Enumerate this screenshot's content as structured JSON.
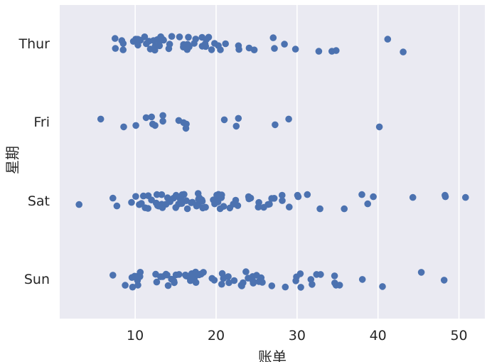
{
  "colors": {
    "figure_bg": "#ffffff",
    "plot_bg": "#eaeaf2",
    "grid": "#ffffff",
    "point": "#4c72b0",
    "text": "#262626"
  },
  "chart_data": {
    "type": "scatter",
    "variant": "strip-plot",
    "title": "",
    "xlabel": "账单",
    "ylabel": "星期",
    "categories": [
      "Thur",
      "Fri",
      "Sat",
      "Sun"
    ],
    "x_ticks": [
      10,
      20,
      30,
      40,
      50
    ],
    "xlim": [
      0.68,
      53.2
    ],
    "grid": "vertical-only",
    "legend": null,
    "point_radius": 4.8,
    "jitter_amplitude": 11,
    "series": [
      {
        "name": "Thur",
        "points": [
          [
            27.2,
            6
          ],
          [
            22.76,
            null
          ],
          [
            17.29,
            null
          ],
          [
            19.44,
            null
          ],
          [
            16.66,
            null
          ],
          [
            10.07,
            null
          ],
          [
            32.68,
            10
          ],
          [
            15.98,
            null
          ],
          [
            34.83,
            9
          ],
          [
            13.03,
            null
          ],
          [
            18.28,
            null
          ],
          [
            24.71,
            null
          ],
          [
            21.16,
            null
          ],
          [
            10.65,
            null
          ],
          [
            12.43,
            null
          ],
          [
            24.08,
            null
          ],
          [
            11.69,
            null
          ],
          [
            13.42,
            null
          ],
          [
            14.26,
            null
          ],
          [
            15.95,
            null
          ],
          [
            12.48,
            null
          ],
          [
            29.8,
            7
          ],
          [
            8.52,
            -1
          ],
          [
            14.52,
            null
          ],
          [
            11.38,
            null
          ],
          [
            22.82,
            null
          ],
          [
            19.08,
            null
          ],
          [
            20.27,
            null
          ],
          [
            11.17,
            null
          ],
          [
            12.26,
            null
          ],
          [
            18.26,
            null
          ],
          [
            8.51,
            8
          ],
          [
            10.33,
            null
          ],
          [
            14.15,
            null
          ],
          [
            16.0,
            null
          ],
          [
            13.16,
            null
          ],
          [
            17.47,
            null
          ],
          [
            34.3,
            10
          ],
          [
            41.19,
            -7
          ],
          [
            27.05,
            -9
          ],
          [
            16.43,
            null
          ],
          [
            8.35,
            -5
          ],
          [
            18.64,
            null
          ],
          [
            11.87,
            null
          ],
          [
            9.78,
            null
          ],
          [
            7.51,
            -8
          ],
          [
            19.81,
            null
          ],
          [
            28.44,
            0
          ],
          [
            15.48,
            null
          ],
          [
            16.58,
            null
          ],
          [
            7.56,
            6
          ],
          [
            10.34,
            null
          ],
          [
            43.11,
            11
          ],
          [
            13.0,
            null
          ],
          [
            13.51,
            null
          ],
          [
            18.71,
            null
          ],
          [
            12.74,
            null
          ],
          [
            13.0,
            null
          ],
          [
            16.4,
            null
          ],
          [
            20.53,
            null
          ],
          [
            16.47,
            null
          ],
          [
            18.78,
            null
          ]
        ]
      },
      {
        "name": "Fri",
        "points": [
          [
            28.97,
            -5
          ],
          [
            22.49,
            5
          ],
          [
            5.75,
            -5
          ],
          [
            16.32,
            2
          ],
          [
            22.75,
            -6
          ],
          [
            40.17,
            6
          ],
          [
            27.28,
            3
          ],
          [
            12.03,
            -8
          ],
          [
            21.01,
            -4
          ],
          [
            12.46,
            4
          ],
          [
            11.35,
            -7
          ],
          [
            15.38,
            -3
          ],
          [
            12.16,
            2
          ],
          [
            13.42,
            -10
          ],
          [
            8.58,
            6
          ],
          [
            15.98,
            0
          ],
          [
            13.42,
            -2
          ],
          [
            16.27,
            8
          ],
          [
            10.09,
            4
          ]
        ]
      },
      {
        "name": "Sat",
        "points": [
          [
            20.65,
            null
          ],
          [
            17.92,
            null
          ],
          [
            20.29,
            null
          ],
          [
            15.77,
            null
          ],
          [
            39.42,
            -6
          ],
          [
            19.82,
            null
          ],
          [
            17.81,
            null
          ],
          [
            13.37,
            null
          ],
          [
            12.69,
            null
          ],
          [
            21.7,
            null
          ],
          [
            19.65,
            null
          ],
          [
            9.55,
            2
          ],
          [
            18.35,
            null
          ],
          [
            15.06,
            null
          ],
          [
            20.69,
            null
          ],
          [
            17.78,
            null
          ],
          [
            24.06,
            null
          ],
          [
            16.31,
            null
          ],
          [
            16.93,
            null
          ],
          [
            18.69,
            null
          ],
          [
            31.27,
            -9
          ],
          [
            16.04,
            null
          ],
          [
            38.01,
            -9
          ],
          [
            26.41,
            null
          ],
          [
            11.24,
            null
          ],
          [
            48.27,
            -8
          ],
          [
            20.29,
            null
          ],
          [
            13.81,
            null
          ],
          [
            11.02,
            null
          ],
          [
            18.29,
            null
          ],
          [
            17.59,
            null
          ],
          [
            20.08,
            null
          ],
          [
            16.45,
            null
          ],
          [
            3.07,
            5
          ],
          [
            20.23,
            null
          ],
          [
            15.01,
            null
          ],
          [
            12.02,
            null
          ],
          [
            17.07,
            null
          ],
          [
            26.86,
            null
          ],
          [
            25.28,
            null
          ],
          [
            14.73,
            null
          ],
          [
            10.51,
            null
          ],
          [
            17.92,
            null
          ],
          [
            44.3,
            -5
          ],
          [
            22.42,
            null
          ],
          [
            20.92,
            null
          ],
          [
            15.36,
            null
          ],
          [
            20.49,
            null
          ],
          [
            25.21,
            null
          ],
          [
            18.24,
            null
          ],
          [
            14.31,
            null
          ],
          [
            14.0,
            null
          ],
          [
            7.25,
            -4
          ],
          [
            50.81,
            -5
          ],
          [
            15.81,
            null
          ],
          [
            26.59,
            null
          ],
          [
            38.73,
            4
          ],
          [
            24.27,
            null
          ],
          [
            12.76,
            null
          ],
          [
            30.06,
            -8
          ],
          [
            25.89,
            null
          ],
          [
            48.33,
            -6
          ],
          [
            13.27,
            null
          ],
          [
            28.17,
            null
          ],
          [
            12.9,
            null
          ],
          [
            28.15,
            null
          ],
          [
            11.59,
            null
          ],
          [
            7.74,
            7
          ],
          [
            30.14,
            -6
          ],
          [
            20.45,
            null
          ],
          [
            13.28,
            null
          ],
          [
            22.12,
            null
          ],
          [
            24.01,
            null
          ],
          [
            15.69,
            null
          ],
          [
            11.61,
            null
          ],
          [
            10.77,
            null
          ],
          [
            15.53,
            null
          ],
          [
            10.07,
            null
          ],
          [
            12.6,
            null
          ],
          [
            32.83,
            11
          ],
          [
            35.83,
            11
          ],
          [
            29.03,
            null
          ],
          [
            27.18,
            null
          ],
          [
            22.67,
            null
          ],
          [
            17.82,
            null
          ]
        ]
      },
      {
        "name": "Sun",
        "points": [
          [
            16.99,
            null
          ],
          [
            10.34,
            null
          ],
          [
            21.01,
            null
          ],
          [
            23.68,
            null
          ],
          [
            24.59,
            null
          ],
          [
            25.29,
            null
          ],
          [
            8.77,
            null
          ],
          [
            26.88,
            null
          ],
          [
            15.04,
            null
          ],
          [
            14.78,
            null
          ],
          [
            10.27,
            null
          ],
          [
            35.26,
            8
          ],
          [
            15.42,
            null
          ],
          [
            18.43,
            null
          ],
          [
            14.83,
            null
          ],
          [
            21.58,
            null
          ],
          [
            10.33,
            null
          ],
          [
            16.29,
            null
          ],
          [
            16.97,
            null
          ],
          [
            17.46,
            null
          ],
          [
            13.94,
            null
          ],
          [
            9.68,
            null
          ],
          [
            30.4,
            -8
          ],
          [
            22.23,
            null
          ],
          [
            32.4,
            -7
          ],
          [
            28.55,
            null
          ],
          [
            18.04,
            null
          ],
          [
            12.54,
            null
          ],
          [
            10.29,
            null
          ],
          [
            34.81,
            8
          ],
          [
            9.94,
            null
          ],
          [
            25.56,
            null
          ],
          [
            19.49,
            null
          ],
          [
            38.07,
            0
          ],
          [
            23.95,
            null
          ],
          [
            25.71,
            null
          ],
          [
            17.31,
            null
          ],
          [
            29.93,
            null
          ],
          [
            14.07,
            null
          ],
          [
            13.13,
            null
          ],
          [
            17.26,
            null
          ],
          [
            24.55,
            null
          ],
          [
            19.77,
            null
          ],
          [
            29.85,
            null
          ],
          [
            48.17,
            1
          ],
          [
            25.0,
            null
          ],
          [
            13.39,
            null
          ],
          [
            16.49,
            null
          ],
          [
            21.5,
            null
          ],
          [
            12.66,
            null
          ],
          [
            16.21,
            null
          ],
          [
            13.81,
            null
          ],
          [
            17.51,
            null
          ],
          [
            24.52,
            null
          ],
          [
            20.76,
            null
          ],
          [
            31.71,
            0
          ],
          [
            10.59,
            null
          ],
          [
            10.63,
            null
          ],
          [
            7.25,
            -6
          ],
          [
            31.85,
            7
          ],
          [
            16.82,
            null
          ],
          [
            32.9,
            -7
          ],
          [
            17.89,
            null
          ],
          [
            14.48,
            null
          ],
          [
            9.6,
            null
          ],
          [
            34.63,
            -5
          ],
          [
            34.65,
            5
          ],
          [
            23.33,
            null
          ],
          [
            45.35,
            -10
          ],
          [
            23.17,
            null
          ],
          [
            40.55,
            10
          ],
          [
            20.69,
            null
          ],
          [
            20.9,
            null
          ],
          [
            30.46,
            11
          ],
          [
            18.15,
            null
          ],
          [
            23.1,
            null
          ]
        ]
      }
    ]
  }
}
